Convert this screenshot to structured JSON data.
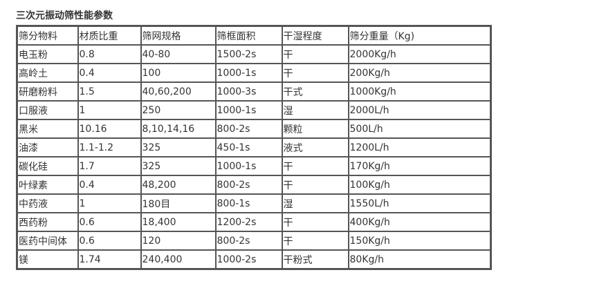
{
  "title": "三次元振动筛性能参数",
  "table": {
    "headers": [
      "筛分物料",
      "材质比重",
      "筛网规格",
      "筛框面积",
      "干湿程度",
      "筛分重量（Kg)"
    ],
    "rows": [
      [
        "电玉粉",
        "0.8",
        "40-80",
        "1500-2s",
        "干",
        "2000Kg/h"
      ],
      [
        "高岭土",
        "0.4",
        "100",
        "1000-1s",
        "干",
        "200Kg/h"
      ],
      [
        "研磨粉料",
        "1.5",
        "40,60,200",
        "1000-3s",
        "干式",
        "1000Kg/h"
      ],
      [
        "口服液",
        "1",
        "250",
        "1000-1s",
        "湿",
        "2000L/h"
      ],
      [
        "黑米",
        "10.16",
        "8,10,14,16",
        "800-2s",
        "颗粒",
        "500L/h"
      ],
      [
        "油漆",
        "1.1-1.2",
        "325",
        "450-1s",
        "液式",
        "1200L/h"
      ],
      [
        "碳化硅",
        "1.7",
        "325",
        "1000-1s",
        "干",
        "170Kg/h"
      ],
      [
        "叶绿素",
        "0.4",
        "48,200",
        "800-2s",
        "干",
        "100Kg/h"
      ],
      [
        "中药液",
        "1",
        "180目",
        "800-1s",
        "湿",
        "1550L/h"
      ],
      [
        "西药粉",
        "0.6",
        "18,400",
        "1200-2s",
        "干",
        "400Kg/h"
      ],
      [
        "医药中间体",
        "0.6",
        "120",
        "800-2s",
        "干",
        "150Kg/h"
      ],
      [
        "镁",
        "1.74",
        "240,400",
        "1000-2s",
        "干粉式",
        "80Kg/h"
      ]
    ]
  }
}
